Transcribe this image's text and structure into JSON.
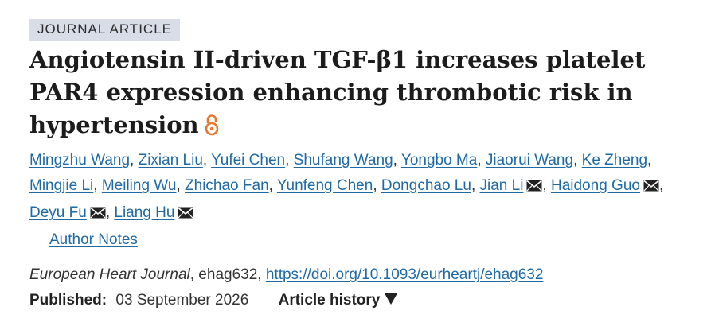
{
  "article_type": "JOURNAL ARTICLE",
  "title": "Angiotensin II-driven TGF-β1 increases platelet PAR4 expression enhancing thrombotic risk in hypertension",
  "authors": [
    {
      "name": "Mingzhu Wang",
      "email": false
    },
    {
      "name": "Zixian Liu",
      "email": false
    },
    {
      "name": "Yufei Chen",
      "email": false
    },
    {
      "name": "Shufang Wang",
      "email": false
    },
    {
      "name": "Yongbo Ma",
      "email": false
    },
    {
      "name": "Jiaorui Wang",
      "email": false
    },
    {
      "name": "Ke Zheng",
      "email": false
    },
    {
      "name": "Mingjie Li",
      "email": false
    },
    {
      "name": "Meiling Wu",
      "email": false
    },
    {
      "name": "Zhichao Fan",
      "email": false
    },
    {
      "name": "Yunfeng Chen",
      "email": false
    },
    {
      "name": "Dongchao Lu",
      "email": false
    },
    {
      "name": "Jian Li",
      "email": true
    },
    {
      "name": "Haidong Guo",
      "email": true
    },
    {
      "name": "Deyu Fu",
      "email": true
    },
    {
      "name": "Liang Hu",
      "email": true
    }
  ],
  "author_notes_label": "Author Notes",
  "citation": {
    "journal": "European Heart Journal",
    "article_id": ", ehag632, ",
    "doi": "https://doi.org/10.1093/eurheartj/ehag632"
  },
  "published": {
    "label": "Published:",
    "date": "03 September 2026"
  },
  "article_history_label": "Article history",
  "colors": {
    "link": "#1f6aa5",
    "badge_bg": "#d8dde8",
    "open_access": "#e8772e"
  },
  "icons": {
    "open_access": "open-access-lock-icon",
    "email": "envelope-icon",
    "expand": "triangle-down-icon"
  }
}
